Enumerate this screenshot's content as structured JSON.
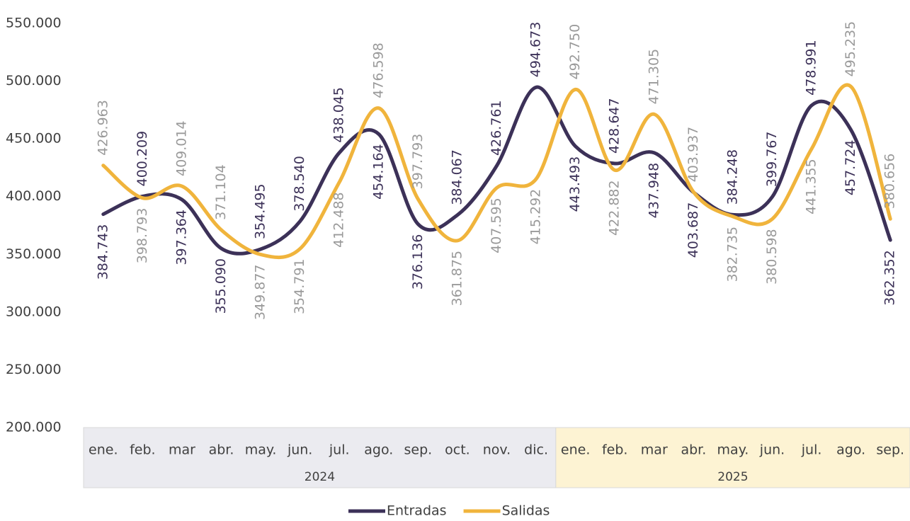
{
  "chart_data": {
    "type": "line",
    "category_groups": [
      {
        "name": "2024",
        "categories": [
          "ene.",
          "feb.",
          "mar",
          "abr.",
          "may.",
          "jun.",
          "jul.",
          "ago.",
          "sep.",
          "oct.",
          "nov.",
          "dic."
        ],
        "color": "#ebebf0"
      },
      {
        "name": "2025",
        "categories": [
          "ene.",
          "feb.",
          "mar",
          "abr.",
          "may.",
          "jun.",
          "jul.",
          "ago.",
          "sep."
        ],
        "color": "#fdf3d3"
      }
    ],
    "series": [
      {
        "name": "Entradas",
        "color": "#3c3158",
        "label_color": "#3c3158",
        "values": [
          384743,
          400209,
          397364,
          355090,
          354495,
          378540,
          438045,
          454164,
          376136,
          384067,
          426761,
          494673,
          443493,
          428647,
          437948,
          403687,
          384248,
          399767,
          478991,
          457724,
          362352
        ],
        "value_labels": [
          "384.743",
          "400.209",
          "397.364",
          "355.090",
          "354.495",
          "378.540",
          "438.045",
          "454.164",
          "376.136",
          "384.067",
          "426.761",
          "494.673",
          "443.493",
          "428.647",
          "437.948",
          "403.687",
          "384.248",
          "399.767",
          "478.991",
          "457.724",
          "362.352"
        ]
      },
      {
        "name": "Salidas",
        "color": "#f0b43c",
        "label_color": "#9a9a9a",
        "values": [
          426963,
          398793,
          409014,
          371104,
          349877,
          354791,
          412488,
          476598,
          397793,
          361875,
          407595,
          415292,
          492750,
          422882,
          471305,
          403937,
          382735,
          380598,
          441355,
          495235,
          380656
        ],
        "value_labels": [
          "426.963",
          "398.793",
          "409.014",
          "371.104",
          "349.877",
          "354.791",
          "412.488",
          "476.598",
          "397.793",
          "361.875",
          "407.595",
          "415.292",
          "492.750",
          "422.882",
          "471.305",
          "403.937",
          "382.735",
          "380.598",
          "441.355",
          "495.235",
          "380.656"
        ]
      }
    ],
    "ylim": [
      200000,
      550000
    ],
    "yticks": [
      {
        "value": 200000,
        "label": "200.000"
      },
      {
        "value": 250000,
        "label": "250.000"
      },
      {
        "value": 300000,
        "label": "300.000"
      },
      {
        "value": 350000,
        "label": "350.000"
      },
      {
        "value": 400000,
        "label": "400.000"
      },
      {
        "value": 450000,
        "label": "450.000"
      },
      {
        "value": 500000,
        "label": "500.000"
      },
      {
        "value": 550000,
        "label": "550.000"
      }
    ],
    "grid": false,
    "legend": "bottom"
  }
}
